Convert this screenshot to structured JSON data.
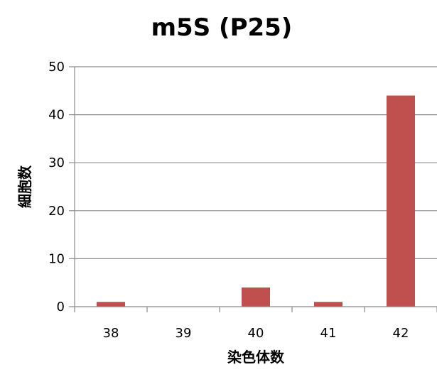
{
  "chart_data": {
    "type": "bar",
    "title": "m5S (P25)",
    "xlabel": "染色体数",
    "ylabel": "細胞数",
    "categories": [
      "38",
      "39",
      "40",
      "41",
      "42"
    ],
    "values": [
      1,
      0,
      4,
      1,
      44
    ],
    "ylim": [
      0,
      50
    ],
    "yticks": [
      0,
      10,
      20,
      30,
      40,
      50
    ],
    "grid": true,
    "legend": "none",
    "bar_color": "#c0504d",
    "grid_color": "#8c8c8c",
    "axis_color": "#8c8c8c"
  }
}
